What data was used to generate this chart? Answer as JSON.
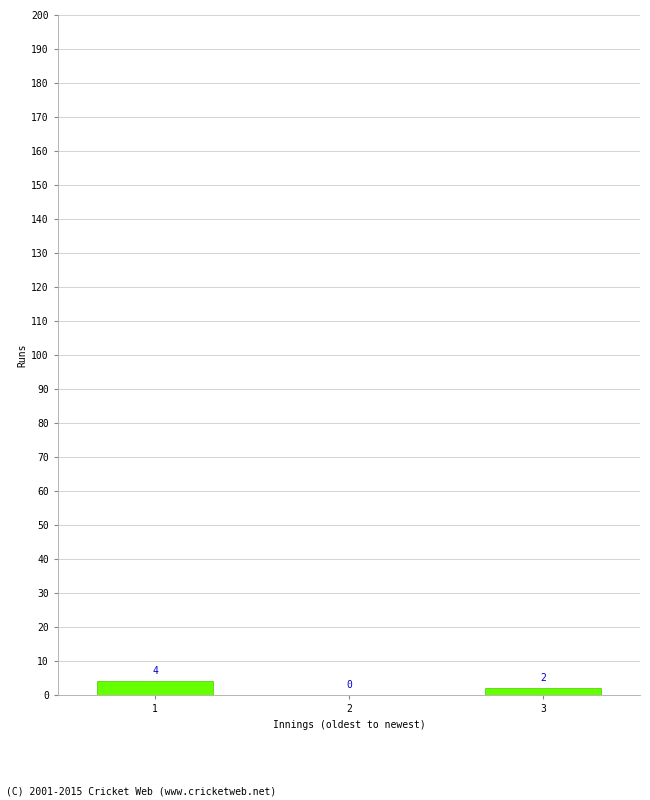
{
  "categories": [
    1,
    2,
    3
  ],
  "values": [
    4,
    0,
    2
  ],
  "bar_color": "#66ff00",
  "bar_edge_color": "#44cc00",
  "value_label_color": "#0000cc",
  "xlabel": "Innings (oldest to newest)",
  "ylabel": "Runs",
  "ylim": [
    0,
    200
  ],
  "footer": "(C) 2001-2015 Cricket Web (www.cricketweb.net)",
  "background_color": "#ffffff",
  "grid_color": "#cccccc"
}
